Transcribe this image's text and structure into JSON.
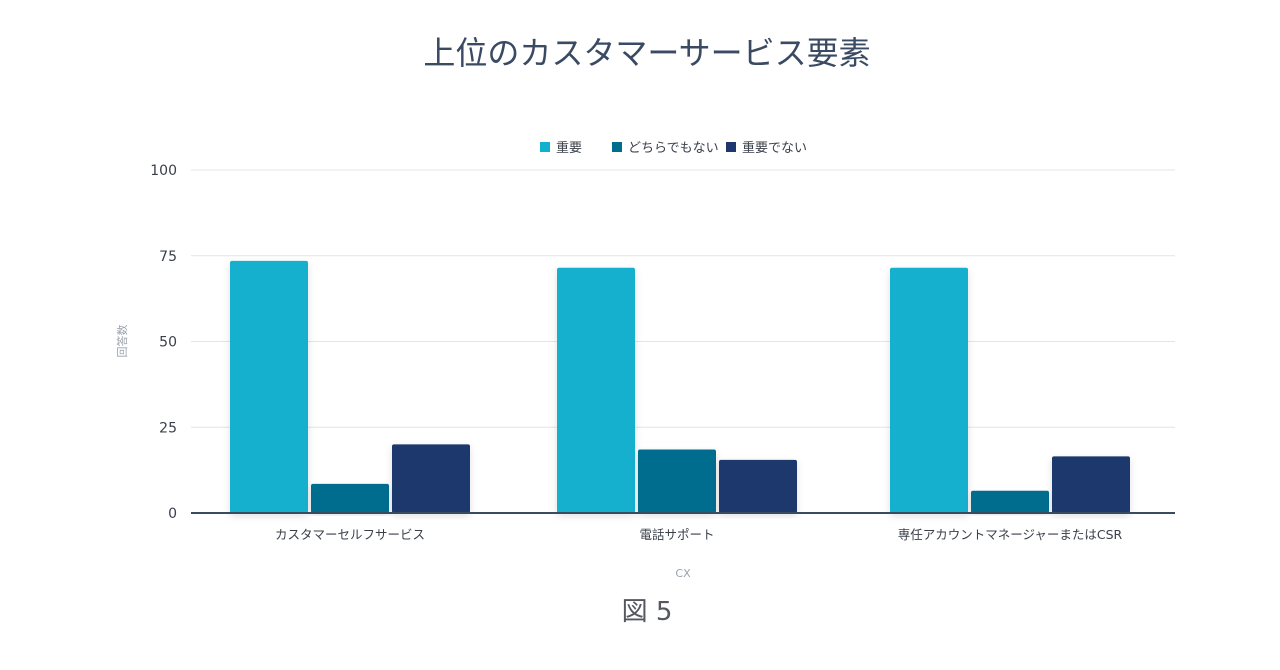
{
  "chart_data": {
    "type": "bar",
    "title": "上位のカスタマーサービス要素",
    "xlabel": "CX",
    "ylabel": "回答数",
    "categories": [
      "カスタマーセルフサービス",
      "電話サポート",
      "専任アカウントマネージャーまたはCSR"
    ],
    "series": [
      {
        "name": "重要",
        "color": "#12b0cf",
        "values": [
          73.5,
          71.5,
          71.5
        ]
      },
      {
        "name": "どちらでもない",
        "color": "#006d8f",
        "values": [
          8.5,
          18.5,
          6.5
        ]
      },
      {
        "name": "重要でない",
        "color": "#1e376c",
        "values": [
          20,
          15.5,
          16.5
        ]
      }
    ],
    "ylim": [
      0,
      100
    ],
    "yticks": [
      "0",
      "25",
      "50",
      "75",
      "100"
    ],
    "grid": true,
    "legend_position": "top-center"
  },
  "caption": "図 5"
}
